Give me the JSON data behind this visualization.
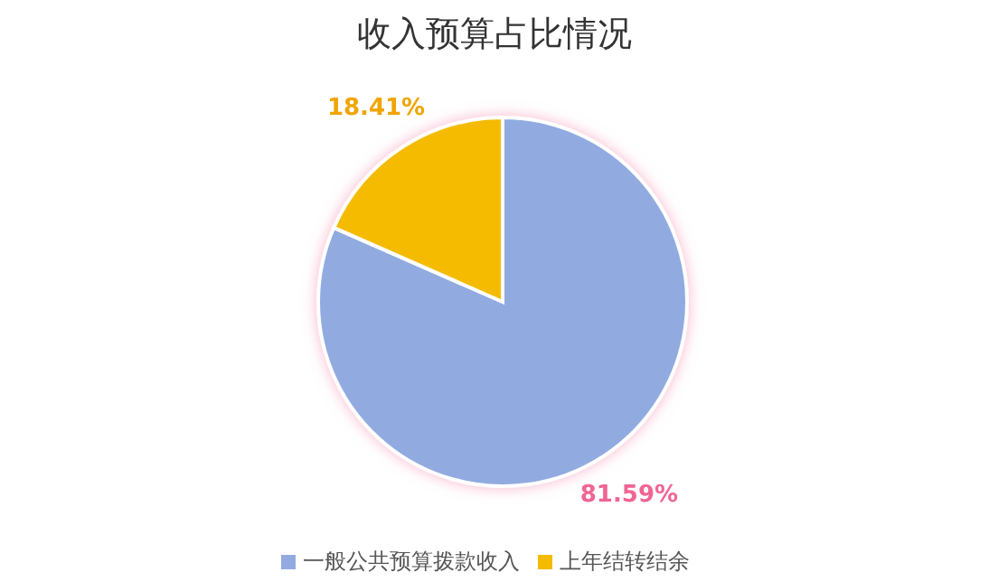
{
  "chart_data": {
    "type": "pie",
    "title": "收入预算占比情况",
    "categories": [
      "一般公共预算拨款收入",
      "上年结转结余"
    ],
    "values": [
      81.59,
      18.41
    ],
    "colors": [
      "#91abe1",
      "#f4bb00"
    ],
    "value_labels": [
      "81.59%",
      "18.41%"
    ],
    "legend": "bottom"
  }
}
